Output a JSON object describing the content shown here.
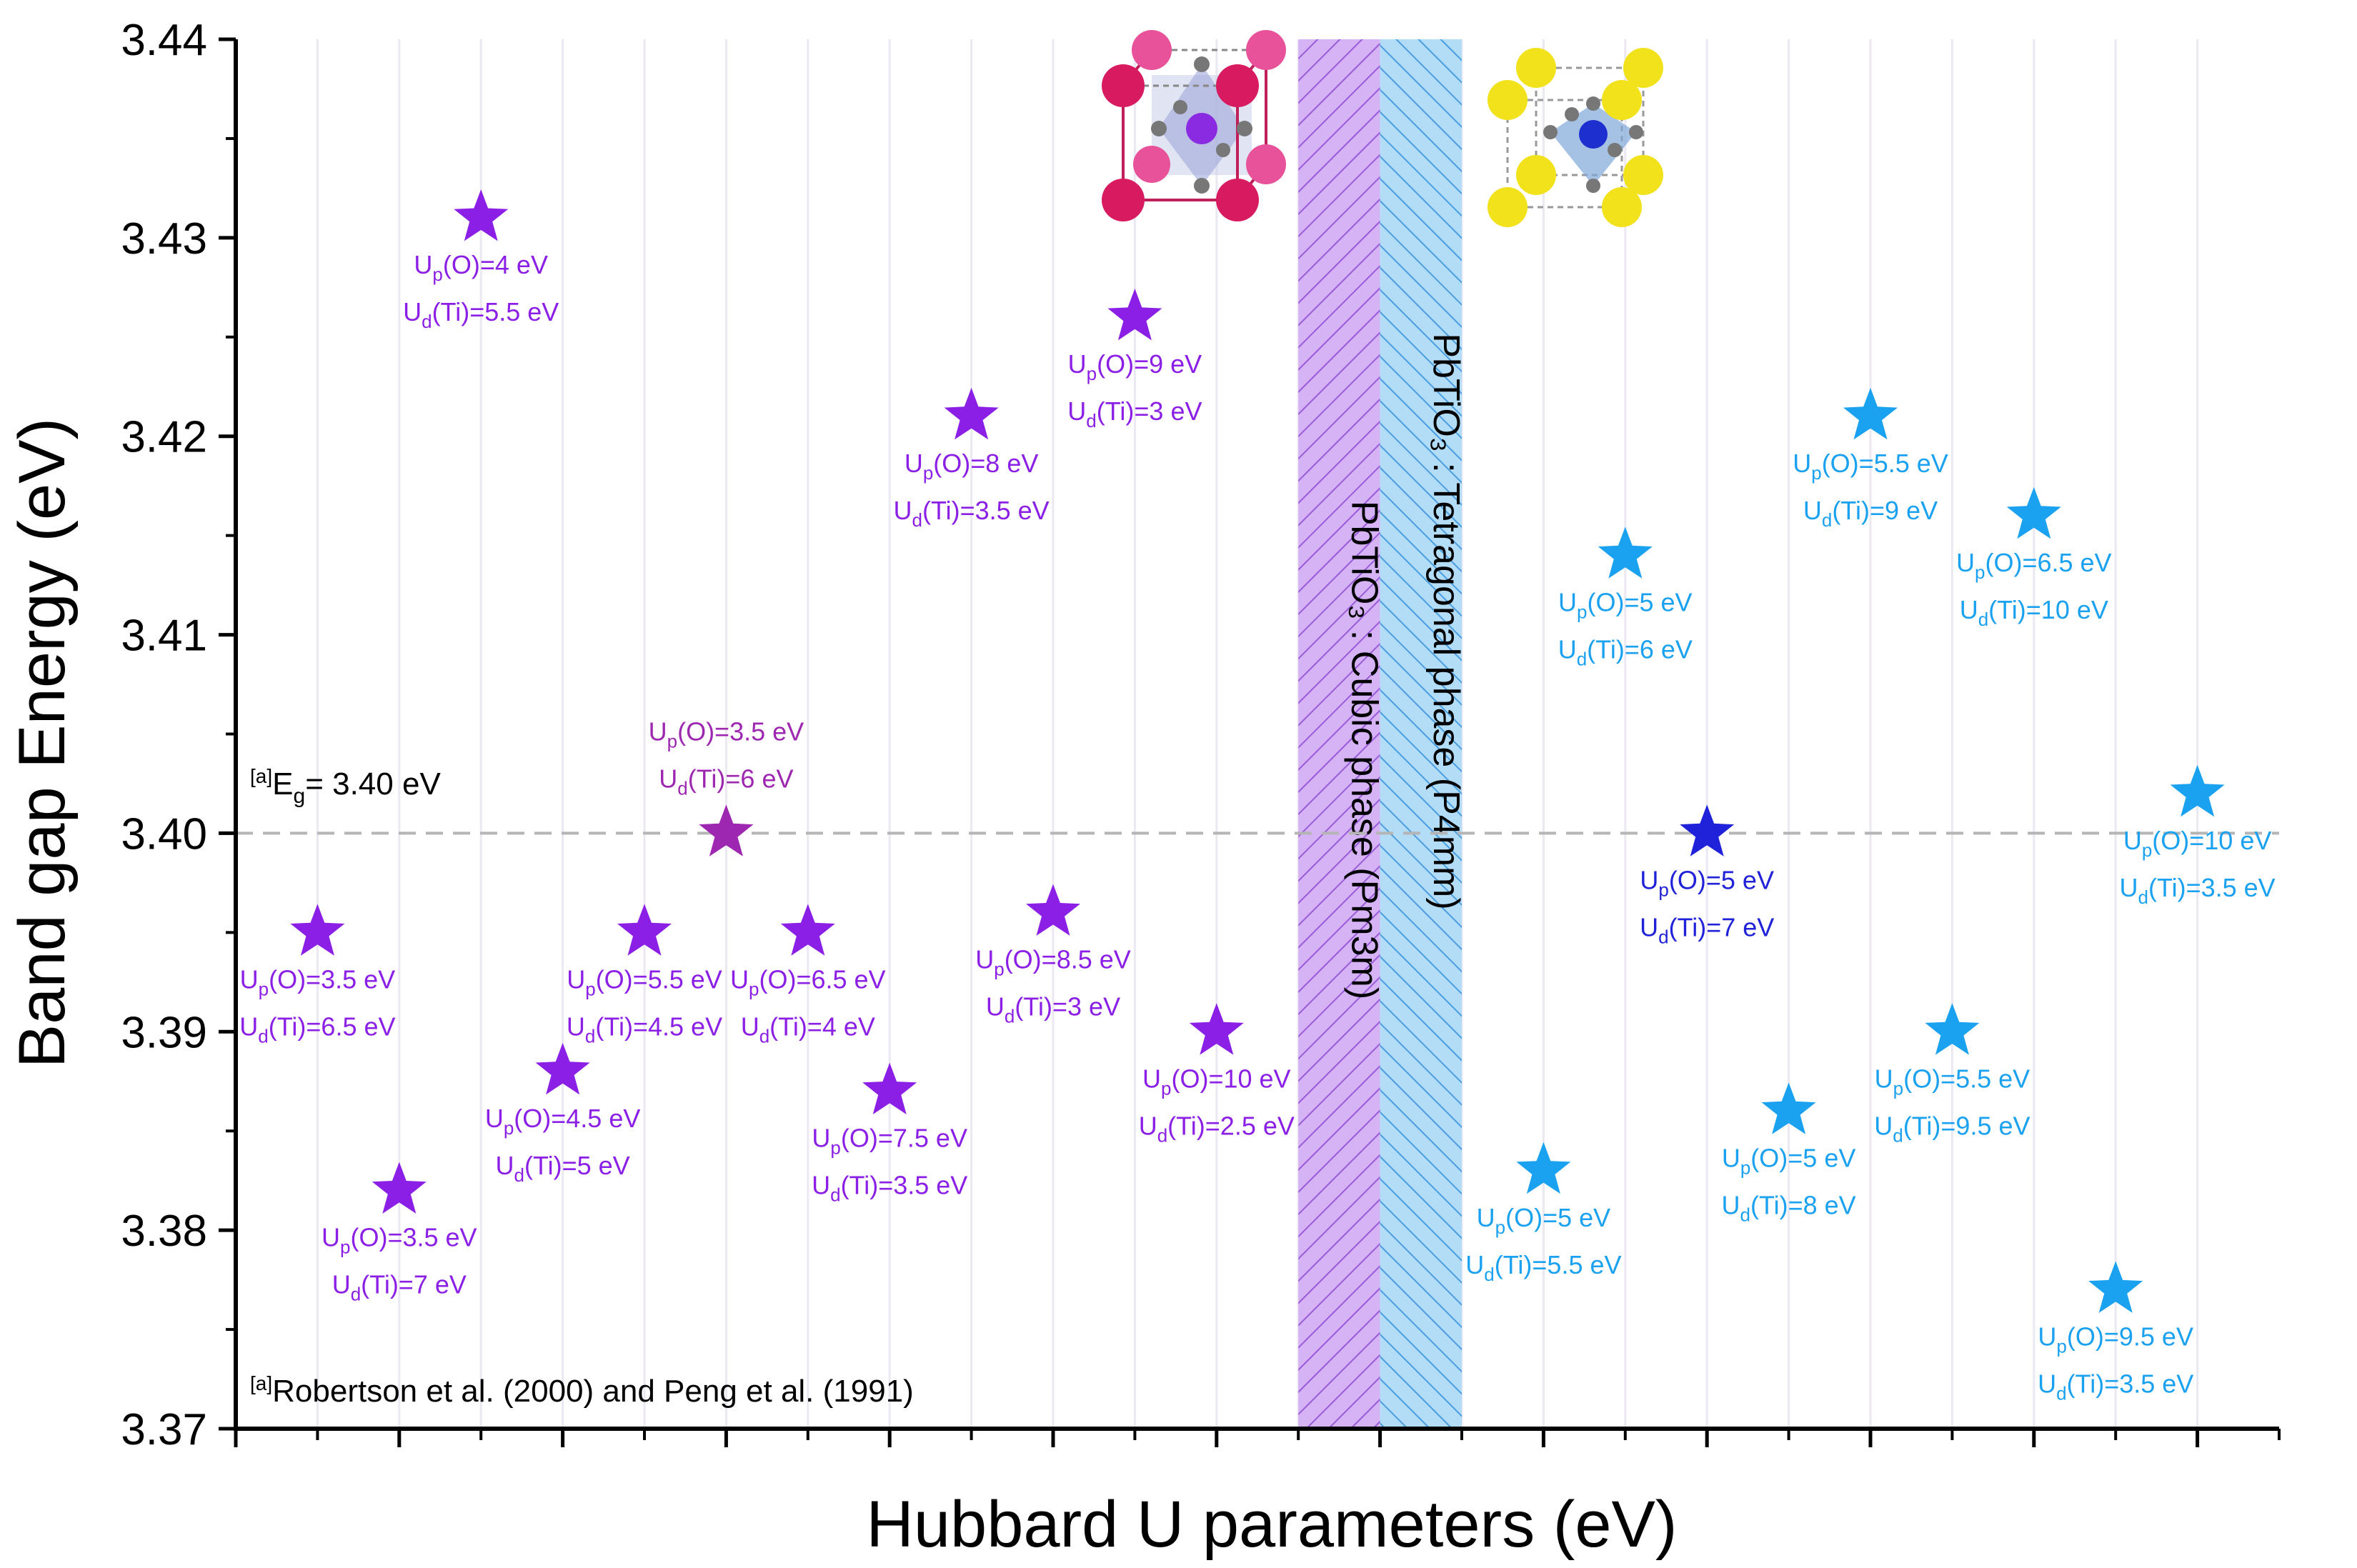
{
  "chart_data": {
    "type": "scatter",
    "marker": "star",
    "ylabel": "Band gap Energy (eV)",
    "xlabel": "Hubbard U parameters (eV)",
    "ylim": [
      3.37,
      3.44
    ],
    "xlim": [
      0,
      25
    ],
    "yticks": [
      "3.37",
      "3.38",
      "3.39",
      "3.40",
      "3.41",
      "3.42",
      "3.43",
      "3.44"
    ],
    "reference": {
      "value": 3.4,
      "label_sup": "[a]",
      "label_main": "E",
      "label_sub": "g",
      "label_rest": "= 3.40 eV"
    },
    "footnote": {
      "sup": "[a]",
      "text": "Robertson et al. (2000) and Peng et al. (1991)"
    },
    "bands": [
      {
        "name": "cubic",
        "from": 13,
        "to": 14,
        "label": "PbTiO₃ : Cubic phase (Pm3̅m)",
        "color": "#c8a0f0",
        "hatch": "#9a5bd8"
      },
      {
        "name": "tetragonal",
        "from": 14,
        "to": 15,
        "label": "PbTiO₃ : Tetragonal phase (P4mm)",
        "color": "#a8d4f5",
        "hatch": "#4a9ee0"
      }
    ],
    "colors": {
      "cubic": "#8b1fe6",
      "tetragonal": "#1aa1f0",
      "highlight_cubic": "#9d27b0",
      "highlight_tetragonal": "#1f22d8"
    },
    "series": [
      {
        "name": "Cubic phase",
        "color": "#8b1fe6",
        "points": [
          {
            "x": 1,
            "y": 3.395,
            "up": "3.5",
            "ud": "6.5"
          },
          {
            "x": 2,
            "y": 3.382,
            "up": "3.5",
            "ud": "7"
          },
          {
            "x": 3,
            "y": 3.431,
            "up": "4",
            "ud": "5.5"
          },
          {
            "x": 4,
            "y": 3.388,
            "up": "4.5",
            "ud": "5"
          },
          {
            "x": 5,
            "y": 3.395,
            "up": "5.5",
            "ud": "4.5"
          },
          {
            "x": 6,
            "y": 3.4,
            "up": "3.5",
            "ud": "6",
            "color": "#9d27b0",
            "label_above": true
          },
          {
            "x": 7,
            "y": 3.395,
            "up": "6.5",
            "ud": "4"
          },
          {
            "x": 8,
            "y": 3.387,
            "up": "7.5",
            "ud": "3.5"
          },
          {
            "x": 9,
            "y": 3.421,
            "up": "8",
            "ud": "3.5"
          },
          {
            "x": 10,
            "y": 3.396,
            "up": "8.5",
            "ud": "3"
          },
          {
            "x": 11,
            "y": 3.426,
            "up": "9",
            "ud": "3"
          },
          {
            "x": 12,
            "y": 3.39,
            "up": "10",
            "ud": "2.5"
          }
        ]
      },
      {
        "name": "Tetragonal phase",
        "color": "#1aa1f0",
        "points": [
          {
            "x": 16,
            "y": 3.383,
            "up": "5",
            "ud": "5.5"
          },
          {
            "x": 17,
            "y": 3.414,
            "up": "5",
            "ud": "6"
          },
          {
            "x": 18,
            "y": 3.4,
            "up": "5",
            "ud": "7",
            "color": "#1f22d8"
          },
          {
            "x": 19,
            "y": 3.386,
            "up": "5",
            "ud": "8"
          },
          {
            "x": 20,
            "y": 3.421,
            "up": "5.5",
            "ud": "9"
          },
          {
            "x": 21,
            "y": 3.39,
            "up": "5.5",
            "ud": "9.5"
          },
          {
            "x": 22,
            "y": 3.416,
            "up": "6.5",
            "ud": "10"
          },
          {
            "x": 23,
            "y": 3.377,
            "up": "9.5",
            "ud": "3.5"
          },
          {
            "x": 24,
            "y": 3.402,
            "up": "10",
            "ud": "3.5"
          }
        ]
      }
    ],
    "label_text": {
      "U": "U",
      "p": "p",
      "d": "d",
      "O": "(O)=",
      "Ti": "(Ti)=",
      "unit": " eV"
    }
  }
}
